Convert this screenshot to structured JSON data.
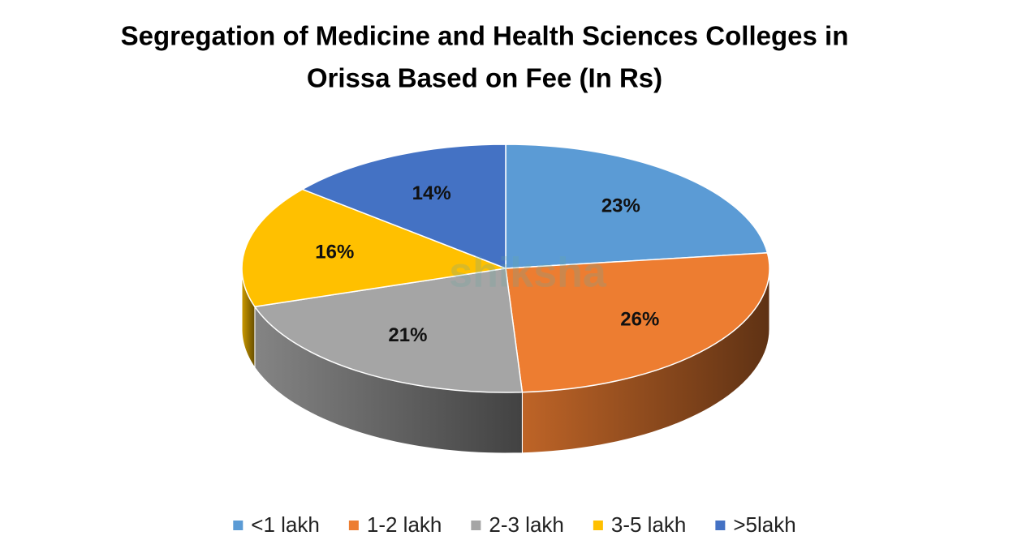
{
  "chart_data": {
    "type": "pie",
    "title": [
      "Segregation of Medicine and Health Sciences Colleges in",
      "Orissa Based on Fee (In Rs)"
    ],
    "categories": [
      "<1 lakh",
      "1-2 lakh",
      "2-3 lakh",
      "3-5 lakh",
      ">5lakh"
    ],
    "values": [
      23,
      26,
      21,
      16,
      14
    ],
    "value_labels": [
      "23%",
      "26%",
      "21%",
      "16%",
      "14%"
    ],
    "colors": [
      "#5b9bd5",
      "#ed7d31",
      "#a5a5a5",
      "#ffc000",
      "#4472c4"
    ],
    "legend": "bottom",
    "watermark": "shiksha"
  }
}
